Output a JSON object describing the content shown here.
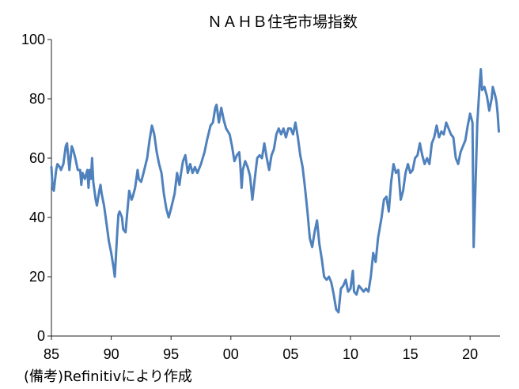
{
  "chart_data": {
    "type": "line",
    "title": "ＮＡＨＢ住宅市場指数",
    "xlabel": "",
    "ylabel": "",
    "xlim": [
      1985,
      2022.5
    ],
    "ylim": [
      0,
      100
    ],
    "x_ticks": [
      {
        "value": 1985,
        "label": "85"
      },
      {
        "value": 1990,
        "label": "90"
      },
      {
        "value": 1995,
        "label": "95"
      },
      {
        "value": 2000,
        "label": "00"
      },
      {
        "value": 2005,
        "label": "05"
      },
      {
        "value": 2010,
        "label": "10"
      },
      {
        "value": 2015,
        "label": "15"
      },
      {
        "value": 2020,
        "label": "20"
      }
    ],
    "y_ticks": [
      {
        "value": 0,
        "label": "0"
      },
      {
        "value": 20,
        "label": "20"
      },
      {
        "value": 40,
        "label": "40"
      },
      {
        "value": 60,
        "label": "60"
      },
      {
        "value": 80,
        "label": "80"
      },
      {
        "value": 100,
        "label": "100"
      }
    ],
    "grid": false,
    "line_color": "#4f81bd",
    "series": [
      {
        "name": "",
        "points": [
          [
            1985.0,
            57
          ],
          [
            1985.1,
            50
          ],
          [
            1985.2,
            49
          ],
          [
            1985.4,
            56
          ],
          [
            1985.5,
            58
          ],
          [
            1985.7,
            57
          ],
          [
            1985.8,
            56
          ],
          [
            1986.0,
            58
          ],
          [
            1986.2,
            64
          ],
          [
            1986.3,
            65
          ],
          [
            1986.5,
            56
          ],
          [
            1986.6,
            60
          ],
          [
            1986.7,
            64
          ],
          [
            1986.8,
            63
          ],
          [
            1987.0,
            60
          ],
          [
            1987.2,
            56
          ],
          [
            1987.4,
            56
          ],
          [
            1987.5,
            51
          ],
          [
            1987.6,
            55
          ],
          [
            1987.8,
            53
          ],
          [
            1988.0,
            56
          ],
          [
            1988.1,
            50
          ],
          [
            1988.2,
            56
          ],
          [
            1988.3,
            53
          ],
          [
            1988.4,
            60
          ],
          [
            1988.5,
            52
          ],
          [
            1988.7,
            46
          ],
          [
            1988.8,
            44
          ],
          [
            1989.0,
            49
          ],
          [
            1989.1,
            51
          ],
          [
            1989.2,
            48
          ],
          [
            1989.4,
            44
          ],
          [
            1989.6,
            38
          ],
          [
            1989.8,
            32
          ],
          [
            1990.0,
            28
          ],
          [
            1990.2,
            23
          ],
          [
            1990.3,
            20
          ],
          [
            1990.5,
            35
          ],
          [
            1990.6,
            41
          ],
          [
            1990.7,
            42
          ],
          [
            1990.9,
            40
          ],
          [
            1991.0,
            36
          ],
          [
            1991.2,
            35
          ],
          [
            1991.3,
            40
          ],
          [
            1991.5,
            49
          ],
          [
            1991.7,
            46
          ],
          [
            1991.8,
            47
          ],
          [
            1992.0,
            50
          ],
          [
            1992.2,
            56
          ],
          [
            1992.3,
            53
          ],
          [
            1992.5,
            52
          ],
          [
            1992.7,
            55
          ],
          [
            1993.0,
            60
          ],
          [
            1993.2,
            66
          ],
          [
            1993.4,
            71
          ],
          [
            1993.6,
            68
          ],
          [
            1993.8,
            62
          ],
          [
            1994.0,
            58
          ],
          [
            1994.2,
            55
          ],
          [
            1994.4,
            48
          ],
          [
            1994.6,
            43
          ],
          [
            1994.8,
            40
          ],
          [
            1995.0,
            43
          ],
          [
            1995.3,
            48
          ],
          [
            1995.5,
            55
          ],
          [
            1995.7,
            51
          ],
          [
            1995.8,
            54
          ],
          [
            1996.0,
            59
          ],
          [
            1996.2,
            61
          ],
          [
            1996.4,
            55
          ],
          [
            1996.6,
            58
          ],
          [
            1996.8,
            55
          ],
          [
            1997.0,
            57
          ],
          [
            1997.2,
            55
          ],
          [
            1997.5,
            58
          ],
          [
            1997.8,
            62
          ],
          [
            1998.0,
            66
          ],
          [
            1998.3,
            71
          ],
          [
            1998.5,
            72
          ],
          [
            1998.7,
            77
          ],
          [
            1998.8,
            78
          ],
          [
            1999.0,
            72
          ],
          [
            1999.2,
            77
          ],
          [
            1999.4,
            73
          ],
          [
            1999.6,
            70
          ],
          [
            1999.9,
            68
          ],
          [
            2000.1,
            64
          ],
          [
            2000.3,
            59
          ],
          [
            2000.5,
            61
          ],
          [
            2000.7,
            62
          ],
          [
            2000.8,
            57
          ],
          [
            2000.9,
            50
          ],
          [
            2001.0,
            56
          ],
          [
            2001.2,
            59
          ],
          [
            2001.4,
            57
          ],
          [
            2001.6,
            54
          ],
          [
            2001.8,
            46
          ],
          [
            2002.0,
            53
          ],
          [
            2002.2,
            60
          ],
          [
            2002.4,
            61
          ],
          [
            2002.6,
            60
          ],
          [
            2002.8,
            65
          ],
          [
            2003.0,
            60
          ],
          [
            2003.2,
            56
          ],
          [
            2003.4,
            61
          ],
          [
            2003.6,
            63
          ],
          [
            2003.8,
            68
          ],
          [
            2004.0,
            70
          ],
          [
            2004.2,
            68
          ],
          [
            2004.4,
            70
          ],
          [
            2004.6,
            67
          ],
          [
            2004.8,
            70
          ],
          [
            2005.0,
            70
          ],
          [
            2005.2,
            68
          ],
          [
            2005.4,
            72
          ],
          [
            2005.6,
            67
          ],
          [
            2005.8,
            61
          ],
          [
            2006.0,
            57
          ],
          [
            2006.2,
            50
          ],
          [
            2006.4,
            42
          ],
          [
            2006.6,
            33
          ],
          [
            2006.8,
            30
          ],
          [
            2007.0,
            35
          ],
          [
            2007.2,
            39
          ],
          [
            2007.4,
            31
          ],
          [
            2007.6,
            26
          ],
          [
            2007.8,
            20
          ],
          [
            2008.0,
            19
          ],
          [
            2008.2,
            20
          ],
          [
            2008.4,
            18
          ],
          [
            2008.6,
            14
          ],
          [
            2008.8,
            9
          ],
          [
            2009.0,
            8
          ],
          [
            2009.2,
            16
          ],
          [
            2009.4,
            17
          ],
          [
            2009.6,
            19
          ],
          [
            2009.8,
            15
          ],
          [
            2010.0,
            16
          ],
          [
            2010.2,
            22
          ],
          [
            2010.3,
            15
          ],
          [
            2010.5,
            14
          ],
          [
            2010.7,
            17
          ],
          [
            2010.9,
            16
          ],
          [
            2011.1,
            15
          ],
          [
            2011.3,
            16
          ],
          [
            2011.5,
            15
          ],
          [
            2011.7,
            20
          ],
          [
            2011.9,
            28
          ],
          [
            2012.1,
            25
          ],
          [
            2012.3,
            33
          ],
          [
            2012.6,
            40
          ],
          [
            2012.8,
            46
          ],
          [
            2013.0,
            47
          ],
          [
            2013.2,
            42
          ],
          [
            2013.4,
            52
          ],
          [
            2013.6,
            58
          ],
          [
            2013.8,
            55
          ],
          [
            2014.0,
            56
          ],
          [
            2014.2,
            46
          ],
          [
            2014.4,
            49
          ],
          [
            2014.6,
            55
          ],
          [
            2014.8,
            58
          ],
          [
            2015.0,
            55
          ],
          [
            2015.2,
            56
          ],
          [
            2015.4,
            60
          ],
          [
            2015.6,
            61
          ],
          [
            2015.8,
            65
          ],
          [
            2016.0,
            61
          ],
          [
            2016.2,
            58
          ],
          [
            2016.4,
            60
          ],
          [
            2016.6,
            58
          ],
          [
            2016.8,
            65
          ],
          [
            2017.0,
            67
          ],
          [
            2017.2,
            71
          ],
          [
            2017.4,
            67
          ],
          [
            2017.6,
            69
          ],
          [
            2017.8,
            68
          ],
          [
            2018.0,
            72
          ],
          [
            2018.2,
            70
          ],
          [
            2018.4,
            68
          ],
          [
            2018.6,
            67
          ],
          [
            2018.8,
            60
          ],
          [
            2019.0,
            58
          ],
          [
            2019.2,
            62
          ],
          [
            2019.4,
            64
          ],
          [
            2019.6,
            66
          ],
          [
            2019.8,
            71
          ],
          [
            2020.0,
            75
          ],
          [
            2020.2,
            72
          ],
          [
            2020.3,
            30
          ],
          [
            2020.5,
            58
          ],
          [
            2020.6,
            72
          ],
          [
            2020.8,
            85
          ],
          [
            2020.9,
            90
          ],
          [
            2021.0,
            83
          ],
          [
            2021.2,
            84
          ],
          [
            2021.4,
            81
          ],
          [
            2021.6,
            76
          ],
          [
            2021.8,
            80
          ],
          [
            2021.9,
            84
          ],
          [
            2022.1,
            81
          ],
          [
            2022.2,
            79
          ],
          [
            2022.3,
            75
          ],
          [
            2022.4,
            69
          ]
        ]
      }
    ]
  },
  "source_note": "(備考)Refinitivにより作成"
}
